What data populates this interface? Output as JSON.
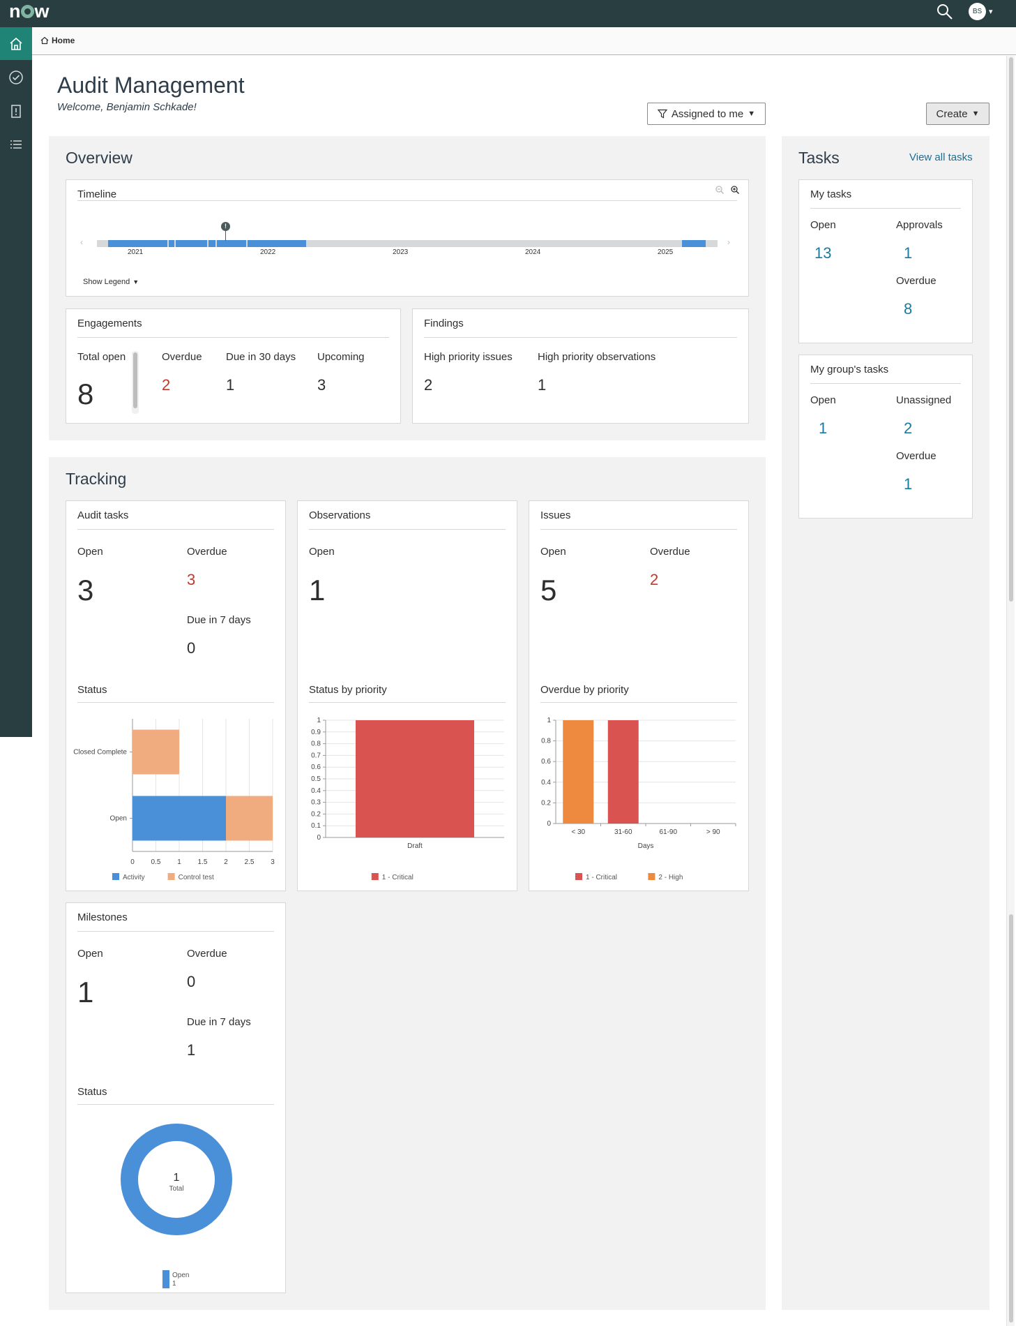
{
  "app": {
    "logo": "now",
    "avatar_initials": "BS",
    "breadcrumb": "Home"
  },
  "page": {
    "title": "Audit Management",
    "welcome": "Welcome, Benjamin Schkade!",
    "filter_label": "Assigned to me",
    "create_label": "Create"
  },
  "overview": {
    "title": "Overview",
    "timeline": {
      "title": "Timeline",
      "years": [
        "2021",
        "2022",
        "2023",
        "2024",
        "2025"
      ],
      "legend_toggle": "Show Legend"
    },
    "engagements": {
      "title": "Engagements",
      "total_open_label": "Total open",
      "total_open": "8",
      "overdue_label": "Overdue",
      "overdue": "2",
      "due30_label": "Due in 30 days",
      "due30": "1",
      "upcoming_label": "Upcoming",
      "upcoming": "3"
    },
    "findings": {
      "title": "Findings",
      "hp_issues_label": "High priority issues",
      "hp_issues": "2",
      "hp_obs_label": "High priority observations",
      "hp_obs": "1"
    }
  },
  "tracking": {
    "title": "Tracking",
    "audit_tasks": {
      "title": "Audit tasks",
      "open_label": "Open",
      "open": "3",
      "overdue_label": "Overdue",
      "overdue": "3",
      "due7_label": "Due in 7 days",
      "due7": "0",
      "status_label": "Status"
    },
    "observations": {
      "title": "Observations",
      "open_label": "Open",
      "open": "1",
      "status_label": "Status by priority"
    },
    "issues": {
      "title": "Issues",
      "open_label": "Open",
      "open": "5",
      "overdue_label": "Overdue",
      "overdue": "2",
      "status_label": "Overdue by priority"
    },
    "milestones": {
      "title": "Milestones",
      "open_label": "Open",
      "open": "1",
      "overdue_label": "Overdue",
      "overdue": "0",
      "due7_label": "Due in 7 days",
      "due7": "1",
      "status_label": "Status"
    }
  },
  "tasks": {
    "title": "Tasks",
    "view_all": "View all tasks",
    "my_tasks": {
      "title": "My tasks",
      "open_label": "Open",
      "open": "13",
      "approvals_label": "Approvals",
      "approvals": "1",
      "overdue_label": "Overdue",
      "overdue": "8"
    },
    "group_tasks": {
      "title": "My group's tasks",
      "open_label": "Open",
      "open": "1",
      "unassigned_label": "Unassigned",
      "unassigned": "2",
      "overdue_label": "Overdue",
      "overdue": "1"
    }
  },
  "colors": {
    "activity": "#4a90d9",
    "control_test": "#f0ab7e",
    "critical": "#d95350",
    "high": "#ee8a40",
    "open": "#4a90d9",
    "header": "#293e40",
    "nav_active": "#1f8476"
  },
  "chart_data": [
    {
      "type": "bar",
      "orientation": "horizontal",
      "stacked": true,
      "categories": [
        "Closed Complete",
        "Open"
      ],
      "series": [
        {
          "name": "Activity",
          "values": [
            0,
            2
          ]
        },
        {
          "name": "Control test",
          "values": [
            1,
            1
          ]
        }
      ],
      "x_ticks": [
        "0",
        "0.5",
        "1",
        "1.5",
        "2",
        "2.5",
        "3"
      ],
      "xlim": [
        0,
        3
      ],
      "legend": "bottom"
    },
    {
      "type": "bar",
      "categories": [
        "Draft"
      ],
      "series": [
        {
          "name": "1 - Critical",
          "values": [
            1
          ]
        }
      ],
      "y_ticks": [
        "0",
        "0.1",
        "0.2",
        "0.3",
        "0.4",
        "0.5",
        "0.6",
        "0.7",
        "0.8",
        "0.9",
        "1"
      ],
      "ylim": [
        0,
        1
      ],
      "legend": "bottom"
    },
    {
      "type": "bar",
      "categories": [
        "< 30",
        "31-60",
        "61-90",
        "> 90"
      ],
      "xlabel": "Days",
      "series": [
        {
          "name": "1 - Critical",
          "values": [
            0,
            1,
            0,
            0
          ]
        },
        {
          "name": "2 - High",
          "values": [
            1,
            0,
            0,
            0
          ]
        }
      ],
      "y_ticks": [
        "0",
        "0.2",
        "0.4",
        "0.6",
        "0.8",
        "1"
      ],
      "ylim": [
        0,
        1
      ],
      "legend": "bottom"
    },
    {
      "type": "pie",
      "donut": true,
      "center_value": "1",
      "center_label": "Total",
      "slices": [
        {
          "name": "Open",
          "value": 1
        }
      ],
      "legend": "bottom"
    }
  ]
}
